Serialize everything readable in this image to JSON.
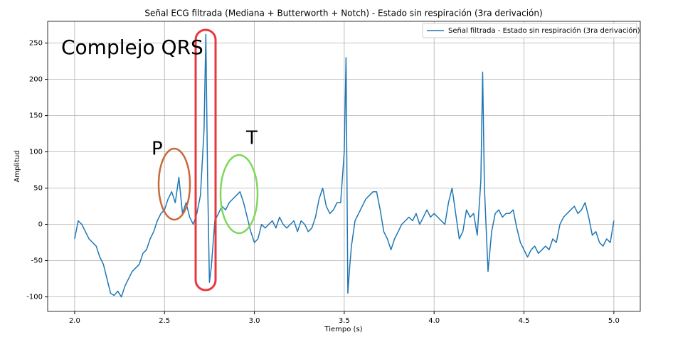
{
  "chart_data": {
    "type": "line",
    "title": "Señal ECG filtrada (Mediana + Butterworth + Notch) - Estado sin respiración (3ra derivación)",
    "x_label": "Tiempo (s)",
    "y_label": "Amplitud",
    "x": [
      2.0,
      2.02,
      2.04,
      2.06,
      2.08,
      2.1,
      2.12,
      2.14,
      2.16,
      2.18,
      2.2,
      2.22,
      2.24,
      2.26,
      2.28,
      2.3,
      2.32,
      2.34,
      2.36,
      2.38,
      2.4,
      2.42,
      2.44,
      2.46,
      2.48,
      2.5,
      2.52,
      2.54,
      2.56,
      2.58,
      2.6,
      2.62,
      2.64,
      2.66,
      2.68,
      2.7,
      2.72,
      2.73,
      2.74,
      2.75,
      2.76,
      2.78,
      2.8,
      2.82,
      2.84,
      2.86,
      2.88,
      2.9,
      2.92,
      2.94,
      2.96,
      2.98,
      3.0,
      3.02,
      3.04,
      3.06,
      3.08,
      3.1,
      3.12,
      3.14,
      3.16,
      3.18,
      3.2,
      3.22,
      3.24,
      3.26,
      3.28,
      3.3,
      3.32,
      3.34,
      3.36,
      3.38,
      3.4,
      3.42,
      3.44,
      3.46,
      3.48,
      3.5,
      3.51,
      3.52,
      3.53,
      3.54,
      3.56,
      3.58,
      3.6,
      3.62,
      3.64,
      3.66,
      3.68,
      3.7,
      3.72,
      3.74,
      3.76,
      3.78,
      3.8,
      3.82,
      3.84,
      3.86,
      3.88,
      3.9,
      3.92,
      3.94,
      3.96,
      3.98,
      4.0,
      4.02,
      4.04,
      4.06,
      4.08,
      4.1,
      4.12,
      4.14,
      4.16,
      4.18,
      4.2,
      4.22,
      4.24,
      4.26,
      4.27,
      4.28,
      4.3,
      4.32,
      4.34,
      4.36,
      4.38,
      4.4,
      4.42,
      4.44,
      4.46,
      4.48,
      4.5,
      4.52,
      4.54,
      4.56,
      4.58,
      4.6,
      4.62,
      4.64,
      4.66,
      4.68,
      4.7,
      4.72,
      4.74,
      4.76,
      4.78,
      4.8,
      4.82,
      4.84,
      4.86,
      4.88,
      4.9,
      4.92,
      4.94,
      4.96,
      4.98,
      5.0
    ],
    "series": [
      {
        "name": "Señal filtrada - Estado sin respiración (3ra derivación)",
        "color": "#1f77b4",
        "values": [
          -20,
          5,
          0,
          -10,
          -20,
          -25,
          -30,
          -45,
          -55,
          -75,
          -95,
          -98,
          -92,
          -100,
          -85,
          -75,
          -65,
          -60,
          -55,
          -40,
          -35,
          -20,
          -10,
          5,
          15,
          20,
          35,
          45,
          30,
          65,
          15,
          30,
          10,
          0,
          15,
          40,
          130,
          262,
          60,
          -80,
          -60,
          5,
          15,
          25,
          20,
          30,
          35,
          40,
          45,
          30,
          10,
          -10,
          -25,
          -20,
          0,
          -5,
          0,
          5,
          -5,
          10,
          0,
          -5,
          0,
          5,
          -10,
          5,
          0,
          -10,
          -5,
          10,
          35,
          50,
          25,
          15,
          20,
          30,
          30,
          100,
          230,
          -95,
          -60,
          -30,
          5,
          15,
          25,
          35,
          40,
          45,
          45,
          20,
          -10,
          -20,
          -35,
          -20,
          -10,
          0,
          5,
          10,
          5,
          15,
          0,
          10,
          20,
          10,
          15,
          10,
          5,
          0,
          30,
          50,
          15,
          -20,
          -10,
          20,
          10,
          15,
          -15,
          60,
          210,
          50,
          -65,
          -10,
          15,
          20,
          10,
          15,
          15,
          20,
          -5,
          -25,
          -35,
          -45,
          -35,
          -30,
          -40,
          -35,
          -30,
          -35,
          -20,
          -25,
          0,
          10,
          15,
          20,
          25,
          15,
          20,
          30,
          10,
          -15,
          -10,
          -25,
          -30,
          -20,
          -25,
          5
        ]
      }
    ],
    "xlim": [
      1.85,
      5.147
    ],
    "ylim": [
      -120,
      280
    ],
    "xticks": [
      {
        "value": 2,
        "label": "2.0"
      },
      {
        "value": 2.5,
        "label": "2.5"
      },
      {
        "value": 3,
        "label": "3.0"
      },
      {
        "value": 3.5,
        "label": "3.5"
      },
      {
        "value": 4,
        "label": "4.0"
      },
      {
        "value": 4.5,
        "label": "4.5"
      },
      {
        "value": 5,
        "label": "5.0"
      }
    ],
    "yticks": [
      -100,
      -50,
      0,
      50,
      100,
      150,
      200,
      250
    ],
    "grid": true,
    "legend": "upper right",
    "annotations": [
      {
        "text": "Complejo QRS",
        "color": "#e8383d"
      },
      {
        "text": "P",
        "color": "#c8693c"
      },
      {
        "text": "T",
        "color": "#7ed85a"
      }
    ]
  }
}
